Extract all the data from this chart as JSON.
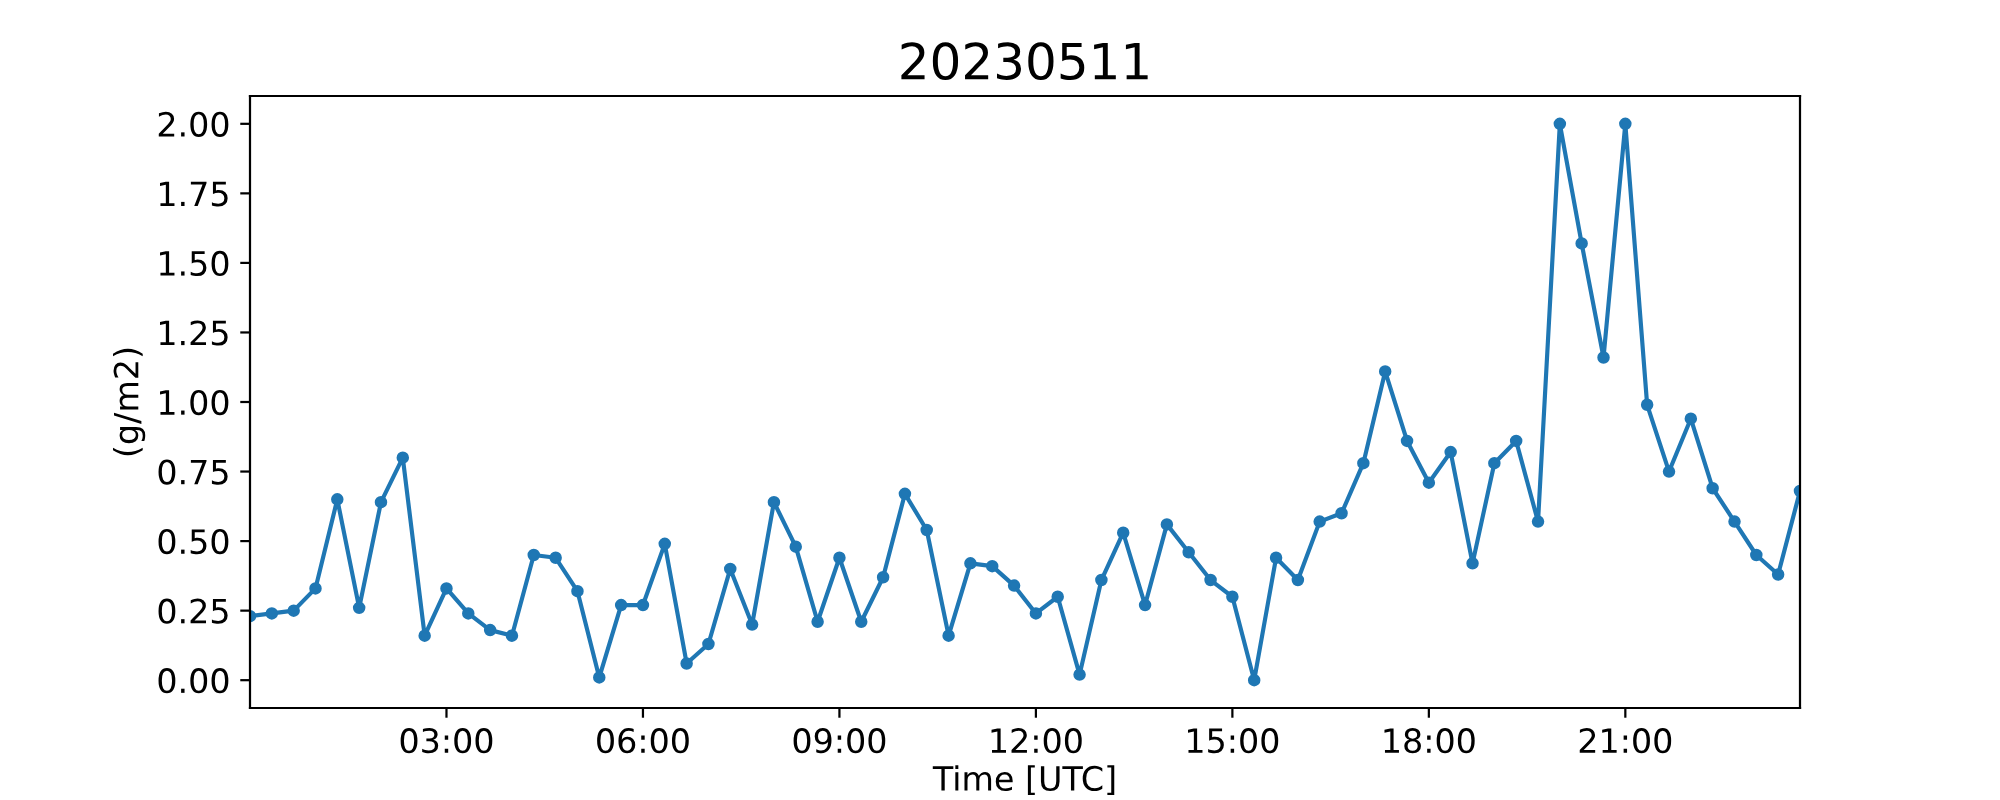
{
  "chart_data": {
    "type": "line",
    "title": "20230511",
    "xlabel": "Time [UTC]",
    "ylabel": "(g/m2)",
    "x": [
      0,
      0.333,
      0.667,
      1,
      1.333,
      1.667,
      2,
      2.333,
      2.667,
      3,
      3.333,
      3.667,
      4,
      4.333,
      4.667,
      5,
      5.333,
      5.667,
      6,
      6.333,
      6.667,
      7,
      7.333,
      7.667,
      8,
      8.333,
      8.667,
      9,
      9.333,
      9.667,
      10,
      10.333,
      10.667,
      11,
      11.333,
      11.667,
      12,
      12.333,
      12.667,
      13,
      13.333,
      13.667,
      14,
      14.333,
      14.667,
      15,
      15.333,
      15.667,
      16,
      16.333,
      16.667,
      17,
      17.333,
      17.667,
      18,
      18.333,
      18.667,
      19,
      19.333,
      19.667,
      20,
      20.333,
      20.667,
      21,
      21.333,
      21.667,
      22,
      22.333,
      22.667,
      23,
      23.333,
      23.667
    ],
    "series": [
      {
        "color": "#1f77b4",
        "values": [
          0.23,
          0.24,
          0.25,
          0.33,
          0.65,
          0.26,
          0.64,
          0.8,
          0.16,
          0.33,
          0.24,
          0.18,
          0.16,
          0.45,
          0.44,
          0.32,
          0.01,
          0.27,
          0.27,
          0.49,
          0.06,
          0.13,
          0.4,
          0.2,
          0.64,
          0.48,
          0.21,
          0.44,
          0.21,
          0.37,
          0.67,
          0.54,
          0.16,
          0.42,
          0.41,
          0.34,
          0.24,
          0.3,
          0.02,
          0.36,
          0.53,
          0.27,
          0.56,
          0.46,
          0.36,
          0.3,
          0.0,
          0.44,
          0.36,
          0.57,
          0.6,
          0.78,
          1.11,
          0.86,
          0.71,
          0.82,
          0.42,
          0.78,
          0.86,
          0.57,
          2.0,
          1.57,
          1.16,
          2.0,
          0.99,
          0.75,
          0.94,
          0.69,
          0.57,
          0.45,
          0.38,
          0.68
        ]
      }
    ],
    "xlim": [
      0,
      23.667
    ],
    "xticks": [
      {
        "value": 3,
        "label": "03:00"
      },
      {
        "value": 6,
        "label": "06:00"
      },
      {
        "value": 9,
        "label": "09:00"
      },
      {
        "value": 12,
        "label": "12:00"
      },
      {
        "value": 15,
        "label": "15:00"
      },
      {
        "value": 18,
        "label": "18:00"
      },
      {
        "value": 21,
        "label": "21:00"
      }
    ],
    "ylim": [
      -0.1,
      2.1
    ],
    "yticks": [
      {
        "value": 0,
        "label": "0.00"
      },
      {
        "value": 0.25,
        "label": "0.25"
      },
      {
        "value": 0.5,
        "label": "0.50"
      },
      {
        "value": 0.75,
        "label": "0.75"
      },
      {
        "value": 1,
        "label": "1.00"
      },
      {
        "value": 1.25,
        "label": "1.25"
      },
      {
        "value": 1.5,
        "label": "1.50"
      },
      {
        "value": 1.75,
        "label": "1.75"
      },
      {
        "value": 2,
        "label": "2.00"
      }
    ],
    "marker": "circle",
    "grid": false,
    "legend": false
  }
}
